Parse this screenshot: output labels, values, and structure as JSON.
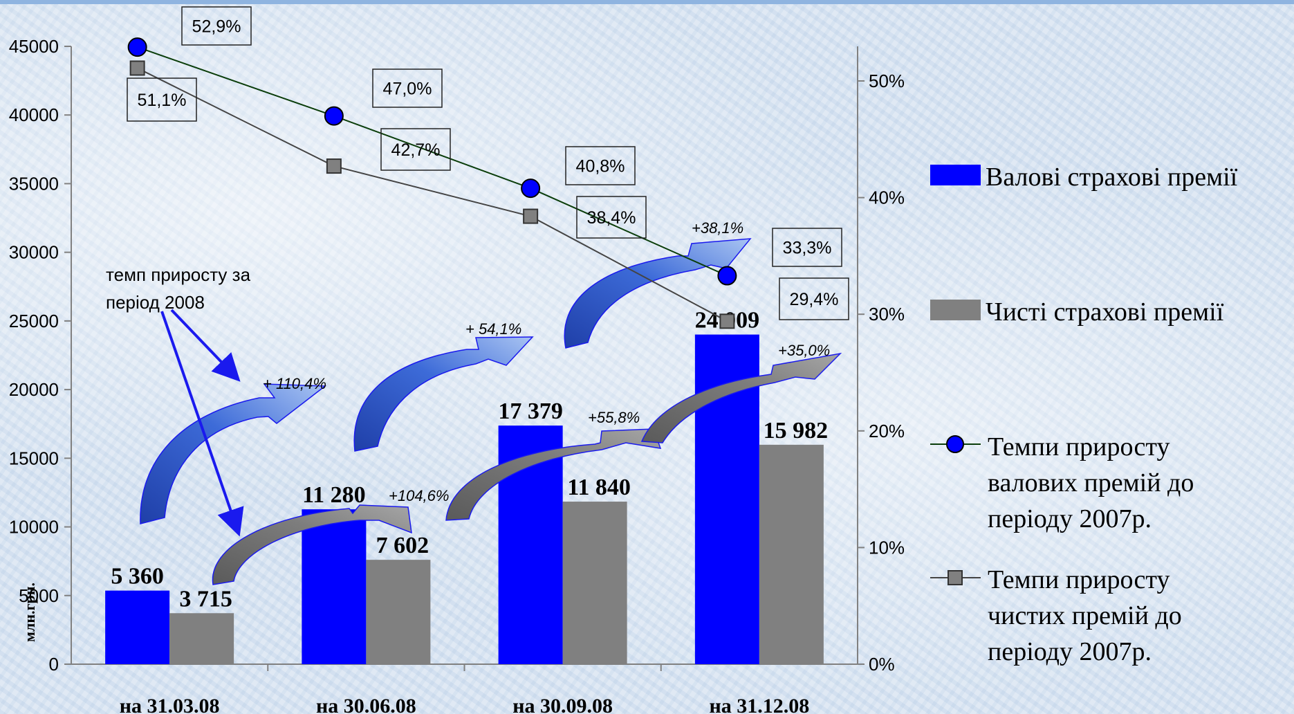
{
  "chart_data": {
    "type": "bar",
    "categories": [
      "на 31.03.08",
      "на 30.06.08",
      "на 30.09.08",
      "на 31.12.08"
    ],
    "ylabel": "млн.грн.",
    "y_ticks": [
      "0",
      "5000",
      "10000",
      "15000",
      "20000",
      "25000",
      "30000",
      "35000",
      "40000",
      "45000"
    ],
    "ylim": [
      0,
      45000
    ],
    "y2_ticks": [
      "0%",
      "10%",
      "20%",
      "30%",
      "40%",
      "50%"
    ],
    "y2lim": [
      0,
      50
    ],
    "series": [
      {
        "name": "Валові страхові премії",
        "type": "bar",
        "color": "#0000ff",
        "values": [
          5360,
          11280,
          17379,
          24009
        ],
        "labels": [
          "5 360",
          "11 280",
          "17 379",
          "24 009"
        ]
      },
      {
        "name": "Чисті страхові премії",
        "type": "bar",
        "color": "#808080",
        "values": [
          3715,
          7602,
          11840,
          15982
        ],
        "labels": [
          "3 715",
          "7 602",
          "11 840",
          "15 982"
        ]
      },
      {
        "name": "Темпи приросту валових премій до періоду 2007р.",
        "type": "line",
        "axis": "secondary",
        "color": "#0000ff",
        "values": [
          52.9,
          47.0,
          40.8,
          33.3
        ],
        "labels": [
          "52,9%",
          "47,0%",
          "40,8%",
          "33,3%"
        ]
      },
      {
        "name": "Темпи приросту чистих премій до періоду 2007р.",
        "type": "line",
        "axis": "secondary",
        "color": "#808080",
        "values": [
          51.1,
          42.7,
          38.4,
          29.4
        ],
        "labels": [
          "51,1%",
          "42,7%",
          "38,4%",
          "29,4%"
        ]
      }
    ],
    "growth_arrows": {
      "gross": [
        "+ 110,4%",
        "+ 54,1%",
        "+38,1%"
      ],
      "net": [
        "+104,6%",
        "+55,8%",
        "+35,0%"
      ]
    },
    "annotation": "темп приросту за період 2008",
    "legend_position": "right"
  }
}
